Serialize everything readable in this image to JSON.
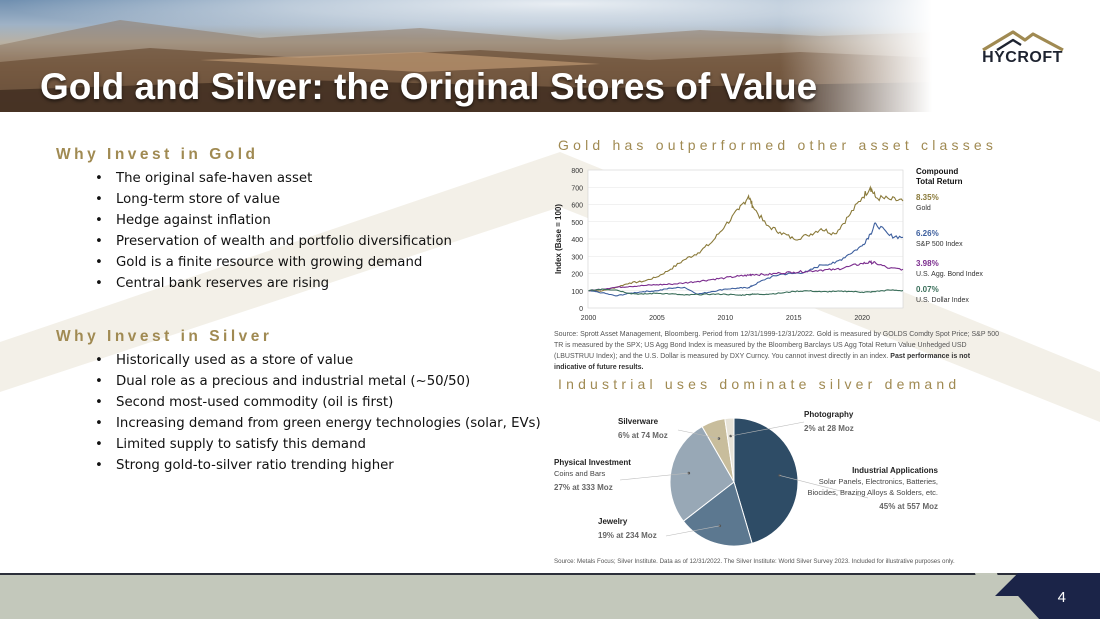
{
  "slide": {
    "title": "Gold and Silver: the Original Stores of Value",
    "page_number": "4",
    "logo_text": "HYCROFT"
  },
  "gold": {
    "heading": "Why Invest in Gold",
    "bullets": [
      "The original safe-haven asset",
      "Long-term store of value",
      "Hedge against inflation",
      "Preservation of wealth and portfolio diversification",
      "Gold is a finite resource with growing demand",
      "Central bank reserves are rising"
    ]
  },
  "silver": {
    "heading": "Why Invest in Silver",
    "bullets": [
      "Historically used as a store of value",
      "Dual role as a precious and industrial metal (~50/50)",
      "Second most-used commodity (oil is first)",
      "Increasing demand from green energy technologies (solar, EVs)",
      "Limited supply to satisfy this demand",
      "Strong gold-to-silver ratio trending higher"
    ]
  },
  "chart_data": [
    {
      "type": "line",
      "heading": "Gold has outperformed other asset classes",
      "ylabel": "Index (Base = 100)",
      "xlabel": "",
      "ylim": [
        0,
        800
      ],
      "yticks": [
        0,
        100,
        200,
        300,
        400,
        500,
        600,
        700,
        800
      ],
      "xlim": [
        1999.96,
        2022.99
      ],
      "xticks": [
        2000,
        2005,
        2010,
        2015,
        2020
      ],
      "grid": true,
      "legend_title": "Compound Total Return",
      "x": [
        2000,
        2001,
        2002,
        2003,
        2004,
        2005,
        2006,
        2007,
        2008,
        2009,
        2010,
        2011,
        2011.7,
        2012,
        2013,
        2014,
        2015,
        2016,
        2017,
        2018,
        2019,
        2020,
        2020.6,
        2021,
        2022,
        2022.99
      ],
      "series": [
        {
          "name": "Gold",
          "return": "8.35%",
          "color": "#8a7a3a",
          "values": [
            100,
            99,
            120,
            145,
            155,
            180,
            225,
            280,
            320,
            380,
            480,
            570,
            650,
            590,
            480,
            440,
            400,
            420,
            460,
            430,
            530,
            640,
            700,
            640,
            630,
            620
          ]
        },
        {
          "name": "S&P 500 Index",
          "return": "6.26%",
          "color": "#3d5f9e",
          "values": [
            100,
            88,
            70,
            85,
            95,
            100,
            115,
            120,
            80,
            95,
            110,
            115,
            118,
            130,
            170,
            195,
            200,
            210,
            250,
            260,
            310,
            360,
            430,
            490,
            420,
            410
          ]
        },
        {
          "name": "U.S. Agg. Bond Index",
          "return": "3.98%",
          "color": "#7b2d8e",
          "values": [
            100,
            110,
            120,
            125,
            130,
            135,
            138,
            145,
            155,
            165,
            175,
            185,
            190,
            195,
            193,
            203,
            208,
            213,
            220,
            222,
            240,
            258,
            265,
            260,
            230,
            225
          ]
        },
        {
          "name": "U.S. Dollar Index",
          "return": "0.07%",
          "color": "#3a6e5a",
          "values": [
            100,
            110,
            105,
            85,
            80,
            86,
            82,
            75,
            78,
            80,
            80,
            74,
            78,
            80,
            80,
            86,
            96,
            100,
            94,
            96,
            97,
            92,
            93,
            96,
            104,
            101
          ]
        }
      ],
      "source_text": "Source: Sprott Asset Management, Bloomberg. Period from 12/31/1999-12/31/2022. Gold is measured by GOLDS Comdty Spot Price; S&P 500 TR is measured by the SPX; US Agg Bond Index is measured by the Bloomberg Barclays US Agg Total Return Value Unhedged USD (LBUSTRUU Index); and the U.S. Dollar is measured by DXY Curncy. You cannot invest directly in an index.",
      "source_bold": "Past performance is not indicative of future results."
    },
    {
      "type": "pie",
      "heading": "Industrial uses dominate silver demand",
      "slices": [
        {
          "label": "Industrial Applications",
          "sublabel": "Solar Panels, Electronics, Batteries, Biocides, Brazing Alloys & Solders, etc.",
          "value_text": "45% at 557 Moz",
          "value": 557,
          "percent": 45,
          "color": "#2e4c66"
        },
        {
          "label": "Jewelry",
          "sublabel": "",
          "value_text": "19% at 234 Moz",
          "value": 234,
          "percent": 19,
          "color": "#5c7890"
        },
        {
          "label": "Physical Investment",
          "sublabel": "Coins and Bars",
          "value_text": "27% at 333 Moz",
          "value": 333,
          "percent": 27,
          "color": "#98a8b6"
        },
        {
          "label": "Silverware",
          "sublabel": "",
          "value_text": "6% at 74 Moz",
          "value": 74,
          "percent": 6,
          "color": "#c8bd9c"
        },
        {
          "label": "Photography",
          "sublabel": "",
          "value_text": "2% at 28 Moz",
          "value": 28,
          "percent": 2,
          "color": "#e7e3d8"
        }
      ],
      "source_text": "Source: Metals Focus; Silver Institute. Data as of 12/31/2022. The Silver Institute: World Silver Survey 2023. Included for illustrative purposes only."
    }
  ]
}
